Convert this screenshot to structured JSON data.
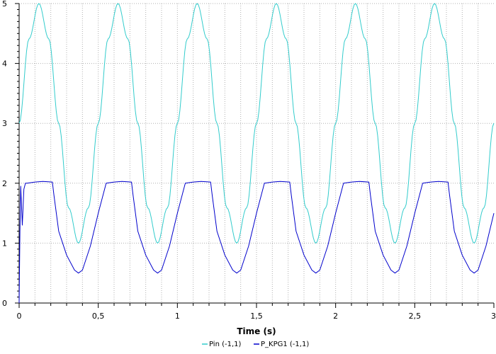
{
  "chart_data": {
    "type": "line",
    "xlabel": "Time (s)",
    "ylabel": "",
    "xlim": [
      0,
      3
    ],
    "ylim": [
      0,
      5
    ],
    "x_ticks": [
      0,
      0.5,
      1,
      1.5,
      2,
      2.5,
      3
    ],
    "x_tick_labels": [
      "0",
      "0,5",
      "1",
      "1,5",
      "2",
      "2,5",
      "3"
    ],
    "y_ticks": [
      0,
      1,
      2,
      3,
      4,
      5
    ],
    "y_tick_labels": [
      "0",
      "1",
      "2",
      "3",
      "4",
      "5"
    ],
    "grid": true,
    "legend_position": "bottom",
    "series": [
      {
        "name": "Pin (-1,1)",
        "color": "#33cccc",
        "x": [
          0,
          0.0625,
          0.125,
          0.1875,
          0.25,
          0.3125,
          0.375,
          0.4375,
          0.5,
          0.5625,
          0.625,
          0.6875,
          0.75,
          0.8125,
          0.875,
          0.9375,
          1,
          1.0625,
          1.125,
          1.1875,
          1.25,
          1.3125,
          1.375,
          1.4375,
          1.5,
          1.5625,
          1.625,
          1.6875,
          1.75,
          1.8125,
          1.875,
          1.9375,
          2,
          2.0625,
          2.125,
          2.1875,
          2.25,
          2.3125,
          2.375,
          2.4375,
          2.5,
          2.5625,
          2.625,
          2.6875,
          2.75,
          2.8125,
          2.875,
          2.9375,
          3
        ],
        "y": [
          3,
          4.41,
          5,
          4.41,
          3,
          1.59,
          1,
          1.59,
          3,
          4.41,
          5,
          4.41,
          3,
          1.59,
          1,
          1.59,
          3,
          4.41,
          5,
          4.41,
          3,
          1.59,
          1,
          1.59,
          3,
          4.41,
          5,
          4.41,
          3,
          1.59,
          1,
          1.59,
          3,
          4.41,
          5,
          4.41,
          3,
          1.59,
          1,
          1.59,
          3,
          4.41,
          5,
          4.41,
          3,
          1.59,
          1,
          1.59,
          3
        ]
      },
      {
        "name": "P_KPG1 (-1,1)",
        "color": "#0000cc",
        "x": [
          0,
          0.005,
          0.01,
          0.02,
          0.03,
          0.04,
          0.05,
          0.1,
          0.15,
          0.21,
          0.22,
          0.25,
          0.3,
          0.35,
          0.375,
          0.4,
          0.45,
          0.5,
          0.55,
          0.6,
          0.65,
          0.71,
          0.72,
          0.75,
          0.8,
          0.85,
          0.875,
          0.9,
          0.95,
          1,
          1.05,
          1.1,
          1.15,
          1.21,
          1.22,
          1.25,
          1.3,
          1.35,
          1.375,
          1.4,
          1.45,
          1.5,
          1.55,
          1.6,
          1.65,
          1.71,
          1.72,
          1.75,
          1.8,
          1.85,
          1.875,
          1.9,
          1.95,
          2,
          2.05,
          2.1,
          2.15,
          2.21,
          2.22,
          2.25,
          2.3,
          2.35,
          2.375,
          2.4,
          2.45,
          2.5,
          2.55,
          2.6,
          2.65,
          2.71,
          2.72,
          2.75,
          2.8,
          2.85,
          2.875,
          2.9,
          2.95,
          3
        ],
        "y": [
          0,
          1.2,
          1.95,
          1.3,
          1.9,
          2.0,
          2.0,
          2.02,
          2.03,
          2.02,
          1.8,
          1.2,
          0.8,
          0.55,
          0.5,
          0.55,
          0.95,
          1.5,
          2.0,
          2.02,
          2.03,
          2.02,
          1.8,
          1.2,
          0.8,
          0.55,
          0.5,
          0.55,
          0.95,
          1.5,
          2.0,
          2.02,
          2.03,
          2.02,
          1.8,
          1.2,
          0.8,
          0.55,
          0.5,
          0.55,
          0.95,
          1.5,
          2.0,
          2.02,
          2.03,
          2.02,
          1.8,
          1.2,
          0.8,
          0.55,
          0.5,
          0.55,
          0.95,
          1.5,
          2.0,
          2.02,
          2.03,
          2.02,
          1.8,
          1.2,
          0.8,
          0.55,
          0.5,
          0.55,
          0.95,
          1.5,
          2.0,
          2.02,
          2.03,
          2.02,
          1.8,
          1.2,
          0.8,
          0.55,
          0.5,
          0.55,
          0.95,
          1.5
        ]
      }
    ]
  }
}
